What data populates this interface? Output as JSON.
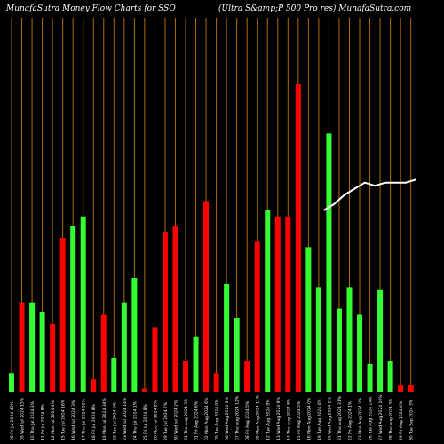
{
  "header": {
    "left_title": "MunafaSutra  Money Flow  Charts for SSO",
    "right_title": "(Ultra  S&amp;P 500  Pro   res) MunafaSutra.com"
  },
  "colors": {
    "background": "#000000",
    "up": "#33ff33",
    "down": "#ff0000",
    "grid": "#b26b00",
    "overlay_line": "#ffffff"
  },
  "chart_data": {
    "type": "bar",
    "ylim": [
      0,
      100
    ],
    "grid": true,
    "categories": [
      "08 Fri Jul 2024 43%",
      "09 Wed Jul 2024 15%",
      "10 Thu Jul 2024 3%",
      "11 Fri Jul 2024 8%",
      "12 Mon Jul 2024 4%",
      "15 Tue Jul 2024 16%",
      "16 Wed Jul 2024 3%",
      "17 Thu Jul 2024 50%",
      "18 Fri Jul 2024 8%",
      "19 Mon Jul 2024 34%",
      "22 Tue Jul 2024 0%",
      "23 Wed Jul 2024 14%",
      "24 Thu Jul 2024 1%",
      "25 Fri Jul 2024 8%",
      "26 Mon Jul 2024 8%",
      "29 Tue Jul 2024 7%",
      "30 Wed Jul 2024 2%",
      "31 Thu Aug 2024 3%",
      "01 Fri Aug 2024 6%",
      "02 Mon Aug 2024 6%",
      "05 Tue Aug 2024 0%",
      "06 Wed Aug 2024 3%",
      "07 Thu Aug 2024 12%",
      "08 Fri Aug 2024 5%",
      "09 Mon Aug 2024 11%",
      "12 Tue Aug 2024 9%",
      "13 Wed Aug 2024 9%",
      "14 Thu Aug 2024 8%",
      "15 Fri Aug 2024 5%",
      "16 Mon Aug 2024 0%",
      "19 Tue Aug 2024 4%",
      "20 Wed Aug 2024 1%",
      "21 Thu Aug 2024 21%",
      "22 Fri Aug 2024 1%",
      "23 Mon Aug 2024 2%",
      "26 Tue Aug 2024 14%",
      "27 Wed Aug 2024 10%",
      "28 Thu Aug 2024 3%",
      "29 Fri Aug 2024 4%",
      "30 Tue Sep 2024 3%"
    ],
    "values": [
      6,
      29,
      29,
      26,
      22,
      50,
      54,
      57,
      4,
      25,
      11,
      29,
      37,
      1,
      21,
      52,
      54,
      10,
      18,
      62,
      6,
      35,
      24,
      10,
      49,
      59,
      57,
      57,
      100,
      47,
      34,
      84,
      27,
      34,
      25,
      9,
      33,
      10,
      2,
      2
    ],
    "directions": [
      "up",
      "down",
      "up",
      "up",
      "down",
      "down",
      "up",
      "up",
      "down",
      "down",
      "up",
      "up",
      "up",
      "down",
      "down",
      "down",
      "down",
      "down",
      "up",
      "down",
      "down",
      "up",
      "up",
      "down",
      "down",
      "up",
      "down",
      "down",
      "down",
      "up",
      "up",
      "up",
      "up",
      "up",
      "up",
      "up",
      "up",
      "up",
      "down",
      "down"
    ],
    "overlay_line": {
      "start_index": 30,
      "values": [
        59,
        61,
        64,
        66,
        68,
        67,
        68,
        68,
        68,
        69
      ]
    }
  }
}
